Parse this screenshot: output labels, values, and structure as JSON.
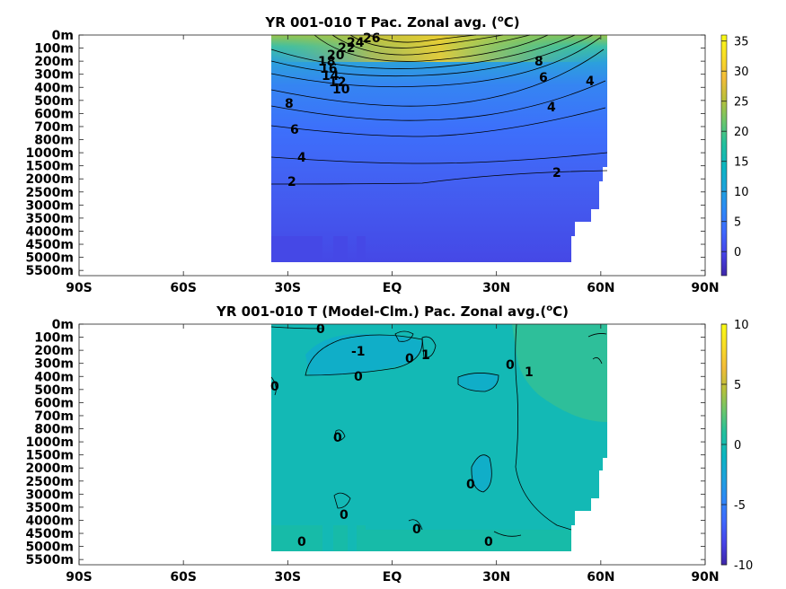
{
  "chart_data": [
    {
      "type": "heatmap",
      "title": "YR 001-010 T Pac. Zonal avg. (",
      "title_sup": "o",
      "title_end": "C)",
      "x_ticks": [
        "90S",
        "60S",
        "30S",
        "EQ",
        "30N",
        "60N",
        "90N"
      ],
      "x_values": [
        -90,
        -60,
        -30,
        0,
        30,
        60,
        90
      ],
      "y_ticks": [
        "0m",
        "100m",
        "200m",
        "300m",
        "400m",
        "500m",
        "600m",
        "700m",
        "800m",
        "1000m",
        "1500m",
        "2000m",
        "2500m",
        "3000m",
        "3500m",
        "4000m",
        "4500m",
        "5000m",
        "5500m"
      ],
      "colorbar_ticks": [
        35,
        30,
        25,
        20,
        15,
        10,
        5,
        0
      ],
      "colorbar_range": [
        -4,
        36
      ],
      "contour_labels": [
        "26",
        "24",
        "22",
        "20",
        "18",
        "16",
        "14",
        "12",
        "10",
        "8",
        "6",
        "4",
        "2",
        "8",
        "6",
        "4",
        "4",
        "2"
      ],
      "data_lon_range": [
        -35,
        62
      ]
    },
    {
      "type": "heatmap",
      "title": "YR 001-010 T (Model-Clm.) Pac. Zonal avg.(",
      "title_sup": "o",
      "title_end": "C)",
      "x_ticks": [
        "90S",
        "60S",
        "30S",
        "EQ",
        "30N",
        "60N",
        "90N"
      ],
      "x_values": [
        -90,
        -60,
        -30,
        0,
        30,
        60,
        90
      ],
      "y_ticks": [
        "0m",
        "100m",
        "200m",
        "300m",
        "400m",
        "500m",
        "600m",
        "700m",
        "800m",
        "1000m",
        "1500m",
        "2000m",
        "2500m",
        "3000m",
        "3500m",
        "4000m",
        "4500m",
        "5000m",
        "5500m"
      ],
      "colorbar_ticks": [
        10,
        5,
        0,
        -5,
        -10
      ],
      "colorbar_range": [
        -10,
        10
      ],
      "contour_labels": [
        "0",
        "-1",
        "0",
        "1",
        "0",
        "0",
        "1",
        "0",
        "0",
        "0",
        "0",
        "0",
        "0",
        "0"
      ],
      "data_lon_range": [
        -35,
        62
      ]
    }
  ],
  "colors": {
    "colormap": [
      "#3e26a8",
      "#4743e8",
      "#3f68fe",
      "#2e87f7",
      "#1ea2dd",
      "#0bb5c2",
      "#23c09c",
      "#6bc66c",
      "#b8c03a",
      "#f3bc39",
      "#f9dd26",
      "#f9fb14"
    ]
  }
}
